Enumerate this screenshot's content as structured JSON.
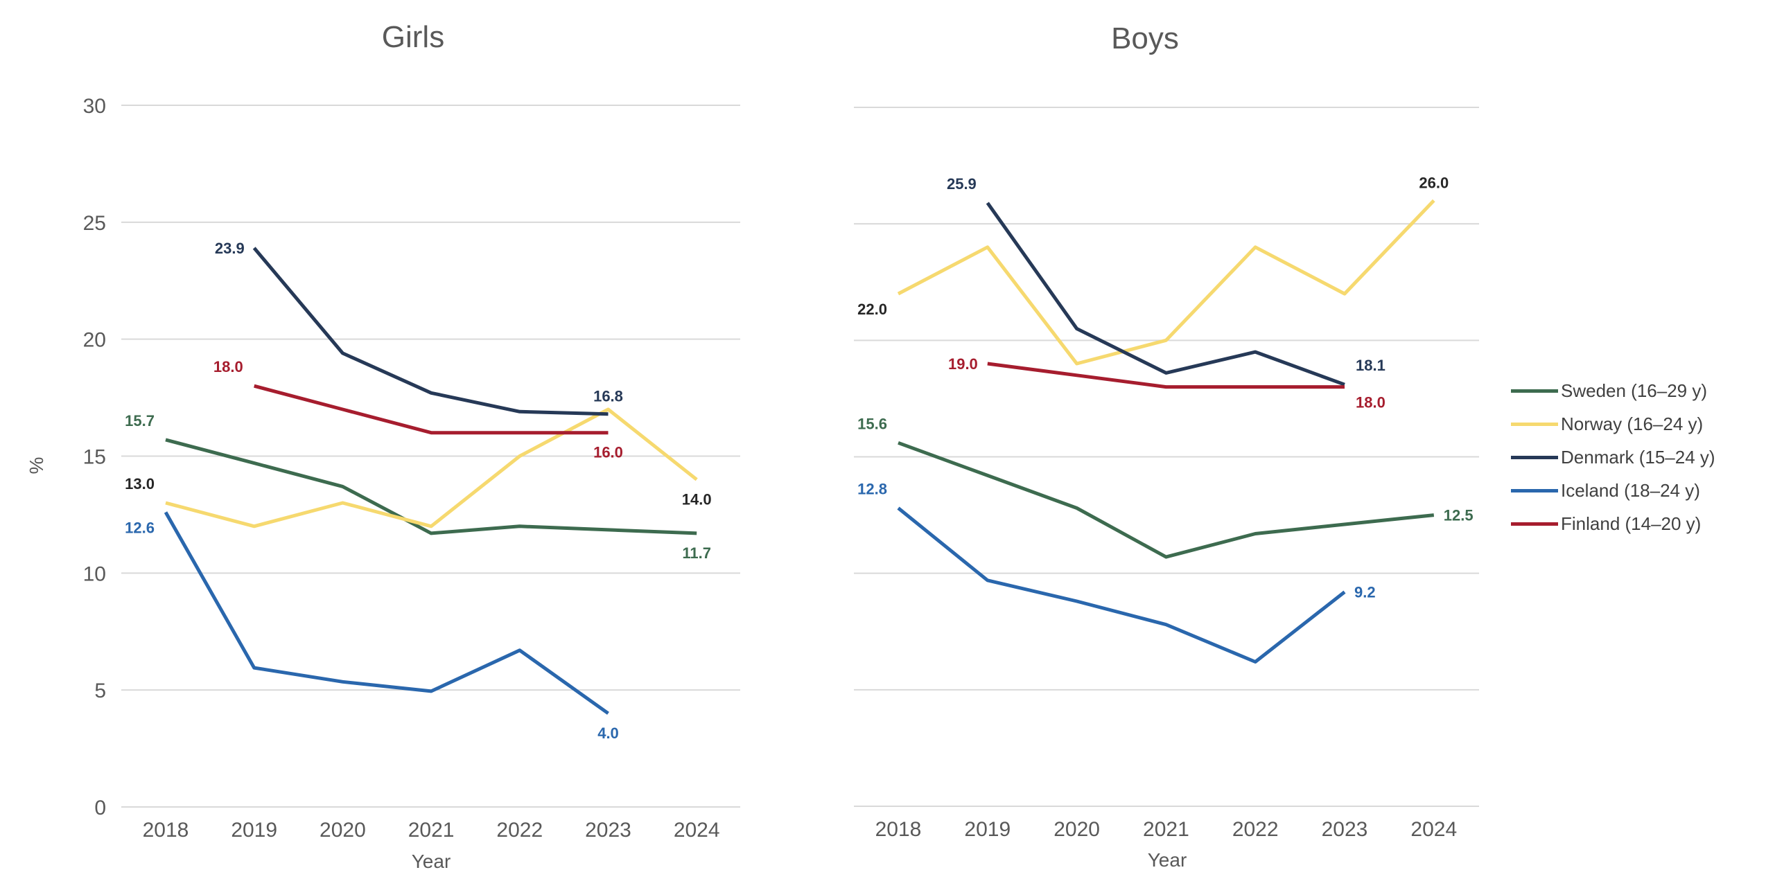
{
  "chart_data": [
    {
      "type": "line",
      "title": "Girls",
      "xlabel": "Year",
      "ylabel": "%",
      "ylim": [
        0,
        30
      ],
      "yticks": [
        0,
        5,
        10,
        15,
        20,
        25,
        30
      ],
      "categories": [
        "2018",
        "2019",
        "2020",
        "2021",
        "2022",
        "2023",
        "2024"
      ],
      "grid": true,
      "series": [
        {
          "key": "sweden",
          "name": "Sweden (16–29 y)",
          "color": "#3d6b4f",
          "values": [
            15.7,
            14.7,
            13.7,
            11.7,
            12.0,
            11.85,
            11.7
          ],
          "labels": [
            {
              "index": 0,
              "text": "15.7",
              "pos": "above-left"
            },
            {
              "index": 6,
              "text": "11.7",
              "pos": "below"
            }
          ]
        },
        {
          "key": "norway",
          "name": "Norway (16–24 y)",
          "color": "#f6d96f",
          "values": [
            13.0,
            12.0,
            13.0,
            12.0,
            15.0,
            17.0,
            14.0
          ],
          "labels": [
            {
              "index": 0,
              "text": "13.0",
              "pos": "above-left"
            },
            {
              "index": 6,
              "text": "14.0",
              "pos": "below"
            }
          ]
        },
        {
          "key": "denmark",
          "name": "Denmark (15–24 y)",
          "color": "#263957",
          "values": [
            null,
            23.9,
            19.4,
            17.7,
            16.9,
            16.8,
            null
          ],
          "labels": [
            {
              "index": 1,
              "text": "23.9",
              "pos": "left"
            },
            {
              "index": 5,
              "text": "16.8",
              "pos": "above"
            }
          ]
        },
        {
          "key": "iceland",
          "name": "Iceland (18–24 y)",
          "color": "#2a67ad",
          "values": [
            12.6,
            5.95,
            5.35,
            4.95,
            6.7,
            4.0,
            null
          ],
          "labels": [
            {
              "index": 0,
              "text": "12.6",
              "pos": "below-left"
            },
            {
              "index": 5,
              "text": "4.0",
              "pos": "below"
            }
          ]
        },
        {
          "key": "finland",
          "name": "Finland (14–20 y)",
          "color": "#a61d2e",
          "values": [
            null,
            18.0,
            17.0,
            16.0,
            16.0,
            16.0,
            null
          ],
          "labels": [
            {
              "index": 1,
              "text": "18.0",
              "pos": "above-left"
            },
            {
              "index": 5,
              "text": "16.0",
              "pos": "below"
            }
          ]
        }
      ]
    },
    {
      "type": "line",
      "title": "Boys",
      "xlabel": "Year",
      "ylabel": "",
      "ylim": [
        0,
        30
      ],
      "categories": [
        "2018",
        "2019",
        "2020",
        "2021",
        "2022",
        "2023",
        "2024"
      ],
      "grid": true,
      "series": [
        {
          "key": "sweden",
          "name": "Sweden (16–29 y)",
          "color": "#3d6b4f",
          "values": [
            15.6,
            14.2,
            12.8,
            10.7,
            11.7,
            12.1,
            12.5
          ],
          "labels": [
            {
              "index": 0,
              "text": "15.6",
              "pos": "above-left"
            },
            {
              "index": 6,
              "text": "12.5",
              "pos": "right"
            }
          ]
        },
        {
          "key": "norway",
          "name": "Norway (16–24 y)",
          "color": "#f6d96f",
          "values": [
            22.0,
            24.0,
            19.0,
            20.0,
            24.0,
            22.0,
            26.0
          ],
          "labels": [
            {
              "index": 0,
              "text": "22.0",
              "pos": "below-left"
            },
            {
              "index": 6,
              "text": "26.0",
              "pos": "above"
            }
          ]
        },
        {
          "key": "denmark",
          "name": "Denmark (15–24 y)",
          "color": "#263957",
          "values": [
            null,
            25.9,
            20.5,
            18.6,
            19.5,
            18.1,
            null
          ],
          "labels": [
            {
              "index": 1,
              "text": "25.9",
              "pos": "above-left"
            },
            {
              "index": 5,
              "text": "18.1",
              "pos": "above-right"
            }
          ]
        },
        {
          "key": "iceland",
          "name": "Iceland (18–24 y)",
          "color": "#2a67ad",
          "values": [
            12.8,
            9.7,
            8.8,
            7.8,
            6.2,
            9.2,
            null
          ],
          "labels": [
            {
              "index": 0,
              "text": "12.8",
              "pos": "above-left"
            },
            {
              "index": 5,
              "text": "9.2",
              "pos": "right"
            }
          ]
        },
        {
          "key": "finland",
          "name": "Finland (14–20 y)",
          "color": "#a61d2e",
          "values": [
            null,
            19.0,
            18.5,
            18.0,
            18.0,
            18.0,
            null
          ],
          "labels": [
            {
              "index": 1,
              "text": "19.0",
              "pos": "left"
            },
            {
              "index": 5,
              "text": "18.0",
              "pos": "below-right"
            }
          ]
        }
      ]
    }
  ],
  "legend": [
    {
      "label": "Sweden (16–29 y)",
      "color": "#3d6b4f"
    },
    {
      "label": "Norway (16–24 y)",
      "color": "#f6d96f"
    },
    {
      "label": "Denmark (15–24 y)",
      "color": "#263957"
    },
    {
      "label": "Iceland (18–24 y)",
      "color": "#2a67ad"
    },
    {
      "label": "Finland (14–20 y)",
      "color": "#a61d2e"
    }
  ]
}
